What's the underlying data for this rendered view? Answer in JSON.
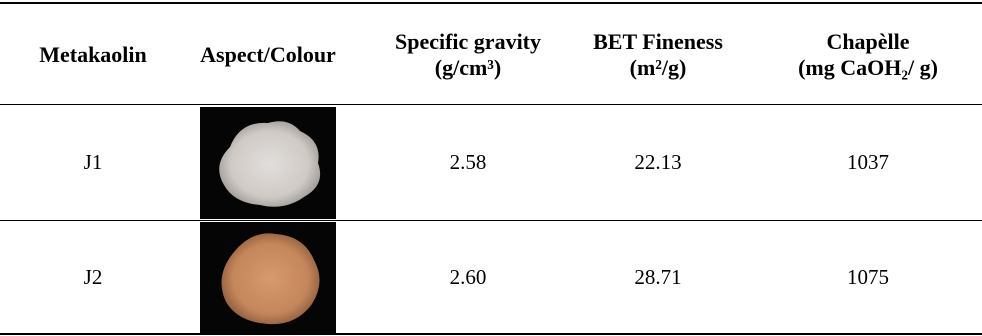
{
  "table": {
    "header": [
      [
        "Metakaolin"
      ],
      [
        "Aspect/Colour"
      ],
      [
        "Specific gravity",
        "(g/cm³)"
      ],
      [
        "BET Fineness",
        "(m²/g)"
      ],
      [
        "Chapèlle",
        "(mg CaOH₂/ g)"
      ]
    ],
    "rows": [
      {
        "metakaolin": "J1",
        "specific_gravity": "2.58",
        "bet_fineness": "22.13",
        "chapelle": "1037"
      },
      {
        "metakaolin": "J2",
        "specific_gravity": "2.60",
        "bet_fineness": "28.71",
        "chapelle": "1075"
      }
    ]
  }
}
